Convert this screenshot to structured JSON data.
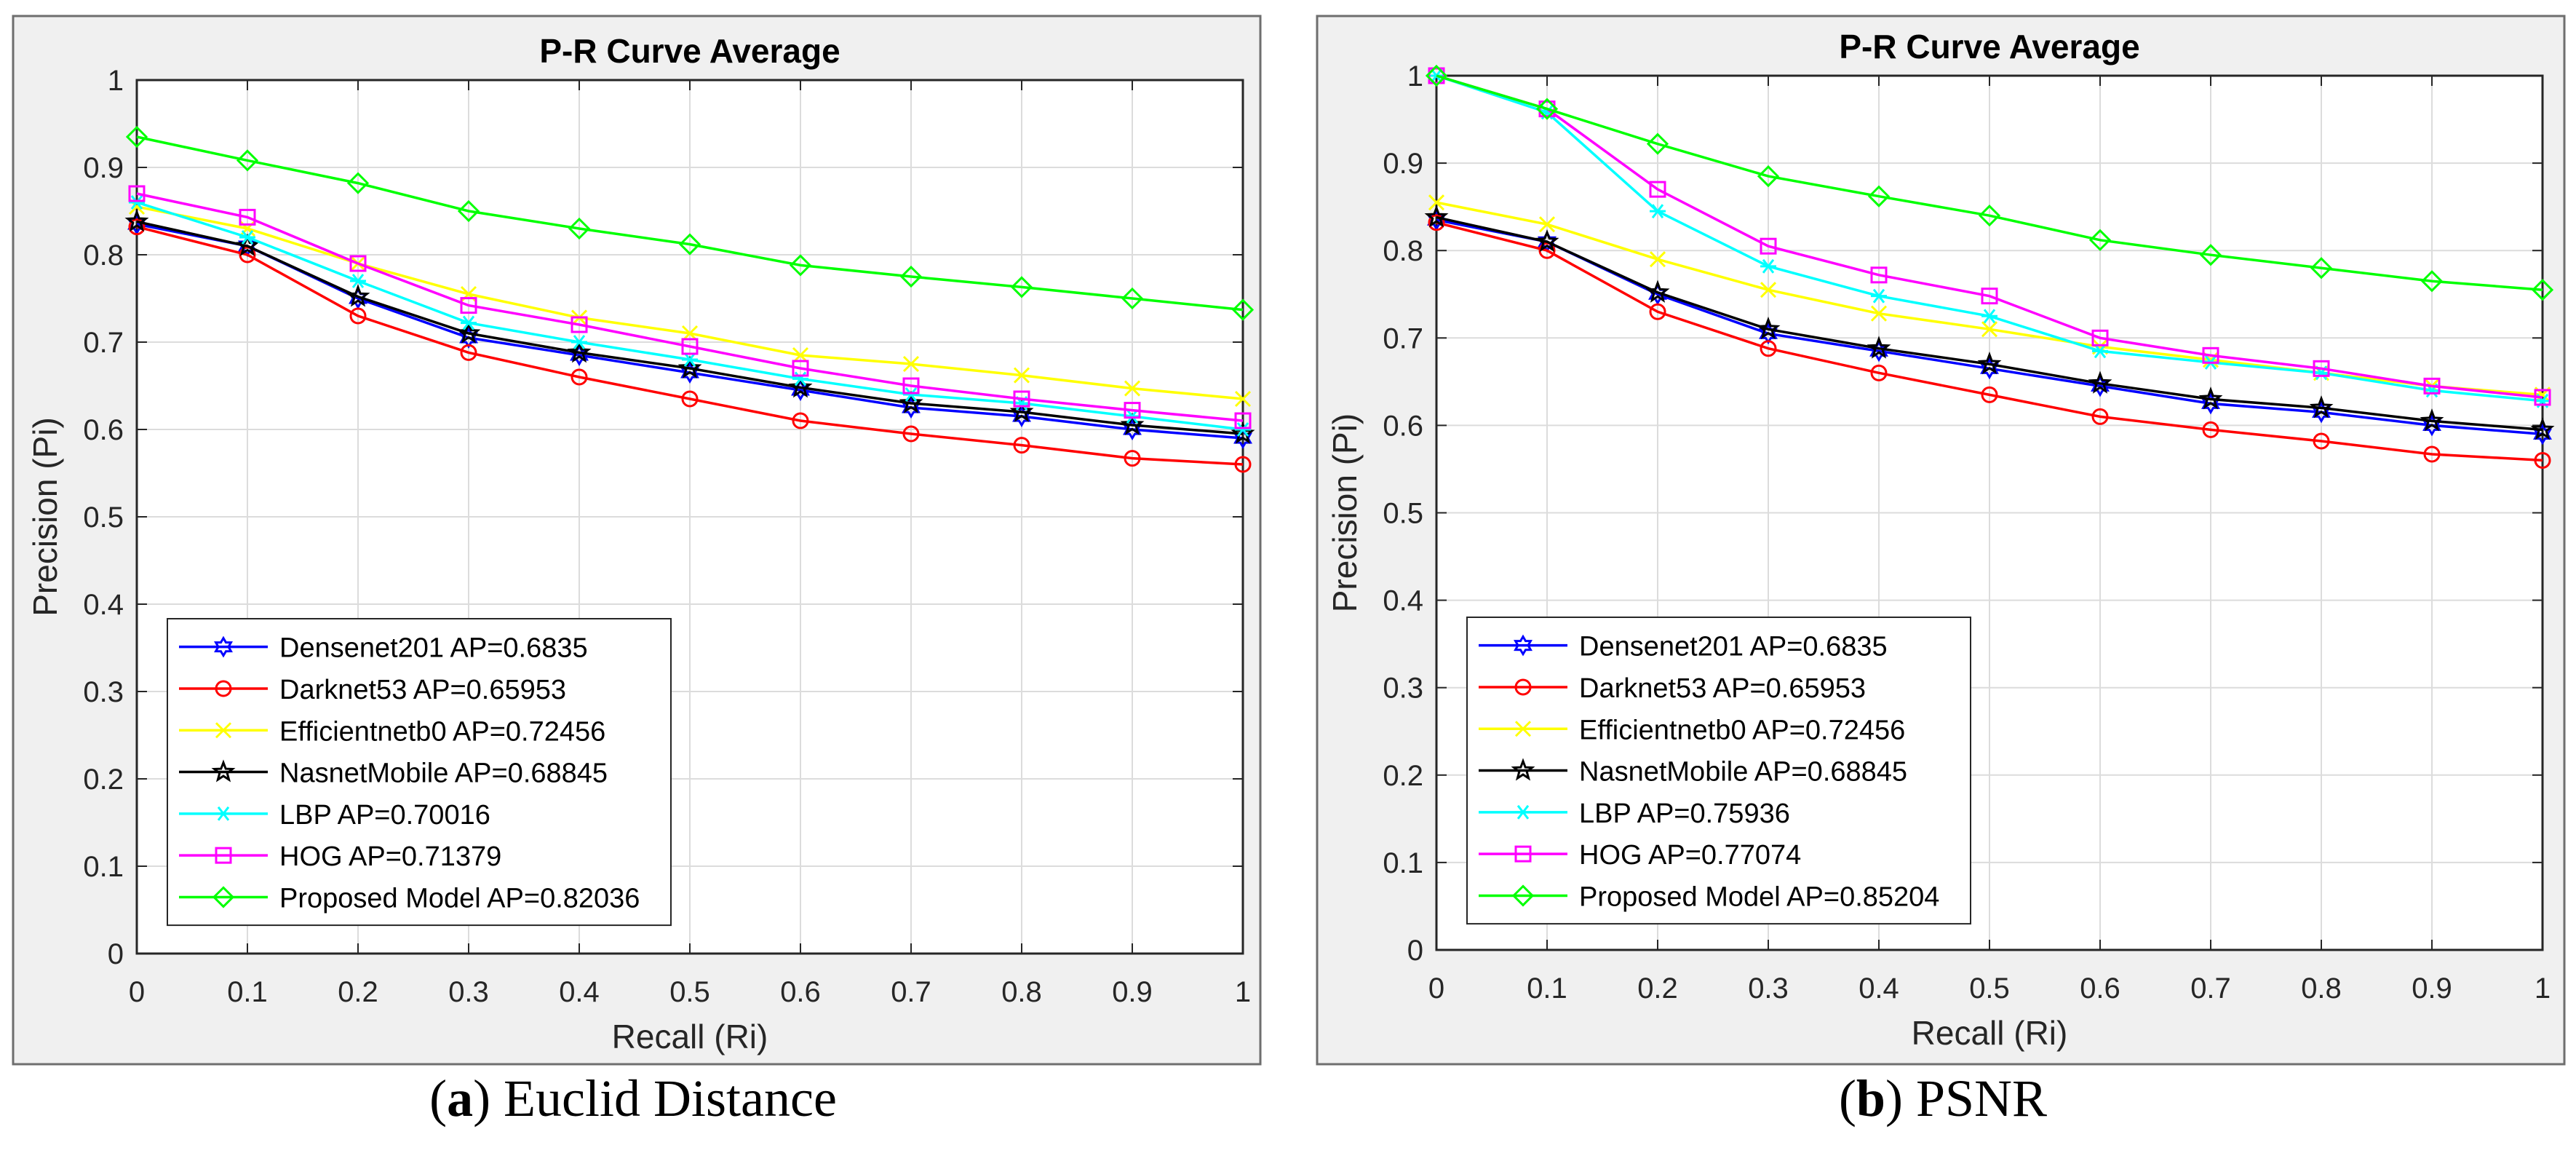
{
  "chart_data": [
    {
      "type": "line",
      "title": "P-R Curve Average",
      "xlabel": "Recall (Ri)",
      "ylabel": "Precision (Pi)",
      "xlim": [
        0,
        1
      ],
      "ylim": [
        0,
        1
      ],
      "xticks": [
        "0",
        "0.1",
        "0.2",
        "0.3",
        "0.4",
        "0.5",
        "0.6",
        "0.7",
        "0.8",
        "0.9",
        "1"
      ],
      "yticks": [
        "0",
        "0.1",
        "0.2",
        "0.3",
        "0.4",
        "0.5",
        "0.6",
        "0.7",
        "0.8",
        "0.9",
        "1"
      ],
      "grid": true,
      "legend_position": "bottom-left",
      "x": [
        0,
        0.1,
        0.2,
        0.3,
        0.4,
        0.5,
        0.6,
        0.7,
        0.8,
        0.9,
        1
      ],
      "series": [
        {
          "name": "Densenet201 AP=0.6835",
          "color": "#0000ff",
          "marker": "hexagram",
          "values": [
            0.835,
            0.81,
            0.75,
            0.705,
            0.685,
            0.665,
            0.645,
            0.625,
            0.615,
            0.6,
            0.59
          ]
        },
        {
          "name": "Darknet53 AP=0.65953",
          "color": "#ff0000",
          "marker": "circle",
          "values": [
            0.832,
            0.8,
            0.73,
            0.688,
            0.66,
            0.635,
            0.61,
            0.595,
            0.582,
            0.567,
            0.56
          ]
        },
        {
          "name": "Efficientnetb0 AP=0.72456",
          "color": "#ffff00",
          "marker": "x",
          "values": [
            0.855,
            0.83,
            0.79,
            0.755,
            0.728,
            0.71,
            0.685,
            0.675,
            0.662,
            0.647,
            0.635
          ]
        },
        {
          "name": "NasnetMobile AP=0.68845",
          "color": "#000000",
          "marker": "pentagram",
          "values": [
            0.838,
            0.81,
            0.752,
            0.71,
            0.688,
            0.67,
            0.648,
            0.63,
            0.62,
            0.605,
            0.595
          ]
        },
        {
          "name": "LBP AP=0.70016",
          "color": "#00ffff",
          "marker": "asterisk",
          "values": [
            0.86,
            0.82,
            0.77,
            0.722,
            0.7,
            0.68,
            0.658,
            0.64,
            0.63,
            0.615,
            0.6
          ]
        },
        {
          "name": "HOG AP=0.71379",
          "color": "#ff00ff",
          "marker": "square",
          "values": [
            0.87,
            0.843,
            0.79,
            0.742,
            0.72,
            0.695,
            0.67,
            0.65,
            0.635,
            0.622,
            0.61
          ]
        },
        {
          "name": "Proposed Model AP=0.82036",
          "color": "#00ff00",
          "marker": "diamond",
          "values": [
            0.935,
            0.908,
            0.882,
            0.85,
            0.83,
            0.812,
            0.788,
            0.775,
            0.763,
            0.75,
            0.737
          ]
        }
      ]
    },
    {
      "type": "line",
      "title": "P-R Curve Average",
      "xlabel": "Recall (Ri)",
      "ylabel": "Precision (Pi)",
      "xlim": [
        0,
        1
      ],
      "ylim": [
        0,
        1
      ],
      "xticks": [
        "0",
        "0.1",
        "0.2",
        "0.3",
        "0.4",
        "0.5",
        "0.6",
        "0.7",
        "0.8",
        "0.9",
        "1"
      ],
      "yticks": [
        "0",
        "0.1",
        "0.2",
        "0.3",
        "0.4",
        "0.5",
        "0.6",
        "0.7",
        "0.8",
        "0.9",
        "1"
      ],
      "grid": true,
      "legend_position": "bottom-left",
      "x": [
        0,
        0.1,
        0.2,
        0.3,
        0.4,
        0.5,
        0.6,
        0.7,
        0.8,
        0.9,
        1
      ],
      "series": [
        {
          "name": "Densenet201 AP=0.6835",
          "color": "#0000ff",
          "marker": "hexagram",
          "values": [
            0.835,
            0.81,
            0.75,
            0.705,
            0.685,
            0.665,
            0.645,
            0.625,
            0.615,
            0.6,
            0.59
          ]
        },
        {
          "name": "Darknet53 AP=0.65953",
          "color": "#ff0000",
          "marker": "circle",
          "values": [
            0.832,
            0.8,
            0.73,
            0.688,
            0.66,
            0.635,
            0.61,
            0.595,
            0.582,
            0.567,
            0.56
          ]
        },
        {
          "name": "Efficientnetb0 AP=0.72456",
          "color": "#ffff00",
          "marker": "x",
          "values": [
            0.855,
            0.83,
            0.79,
            0.755,
            0.728,
            0.71,
            0.69,
            0.675,
            0.66,
            0.645,
            0.635
          ]
        },
        {
          "name": "NasnetMobile AP=0.68845",
          "color": "#000000",
          "marker": "pentagram",
          "values": [
            0.838,
            0.81,
            0.752,
            0.71,
            0.688,
            0.67,
            0.648,
            0.63,
            0.62,
            0.605,
            0.595
          ]
        },
        {
          "name": "LBP AP=0.75936",
          "color": "#00ffff",
          "marker": "asterisk",
          "values": [
            1.0,
            0.958,
            0.845,
            0.782,
            0.748,
            0.725,
            0.685,
            0.672,
            0.66,
            0.64,
            0.628
          ]
        },
        {
          "name": "HOG AP=0.77074",
          "color": "#ff00ff",
          "marker": "square",
          "values": [
            1.0,
            0.962,
            0.87,
            0.805,
            0.772,
            0.748,
            0.7,
            0.68,
            0.665,
            0.645,
            0.632
          ]
        },
        {
          "name": "Proposed Model AP=0.85204",
          "color": "#00ff00",
          "marker": "diamond",
          "values": [
            1.0,
            0.962,
            0.922,
            0.885,
            0.862,
            0.84,
            0.812,
            0.795,
            0.78,
            0.765,
            0.755
          ]
        }
      ]
    }
  ],
  "captions": [
    {
      "letter": "a",
      "prefix": "(",
      "suffix": ") Euclid Distance"
    },
    {
      "letter": "b",
      "prefix": "(",
      "suffix": ") PSNR"
    }
  ]
}
